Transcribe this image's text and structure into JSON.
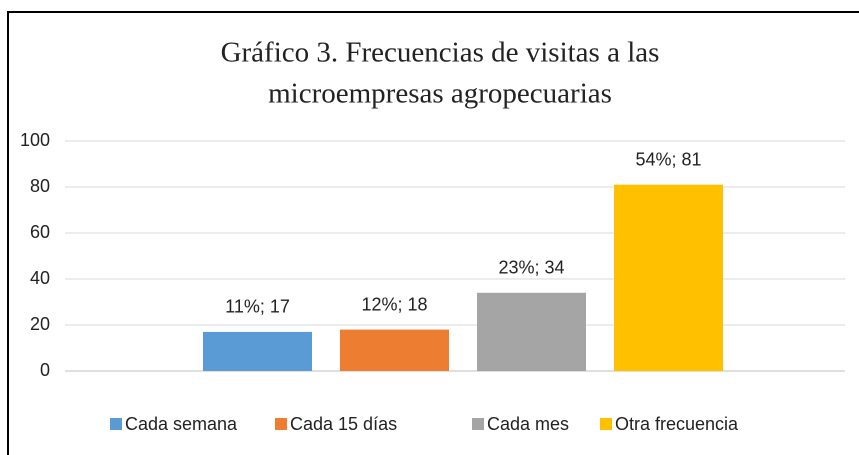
{
  "chart_data": {
    "type": "bar",
    "title": [
      "Gráfico 3. Frecuencias de visitas a las",
      "microempresas agropecuarias"
    ],
    "categories": [
      "Cada semana",
      "Cada 15 días",
      "Cada mes",
      "Otra frecuencia"
    ],
    "values": [
      17,
      18,
      34,
      81
    ],
    "value_labels": [
      "11%; 17",
      "12%; 18",
      "23%; 34",
      "54%; 81"
    ],
    "colors": [
      "#5b9bd5",
      "#ed7d31",
      "#a5a5a5",
      "#ffc000"
    ],
    "ylim": [
      0,
      100
    ],
    "yticks": [
      0,
      20,
      40,
      60,
      80,
      100
    ],
    "grid": true,
    "legend": "bottom"
  }
}
